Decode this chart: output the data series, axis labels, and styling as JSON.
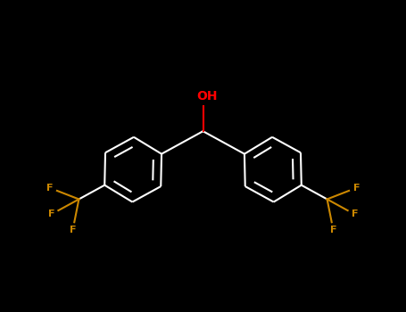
{
  "background_color": "#000000",
  "line_color": "#ffffff",
  "oh_color": "#ff0000",
  "f_color": "#cc8800",
  "oh_label": "OH",
  "f_label": "F",
  "fig_width": 4.55,
  "fig_height": 3.5,
  "dpi": 100,
  "lw": 1.5,
  "ring_r": 0.72,
  "xlim": [
    -4.5,
    4.5
  ],
  "ylim": [
    -3.5,
    3.0
  ]
}
